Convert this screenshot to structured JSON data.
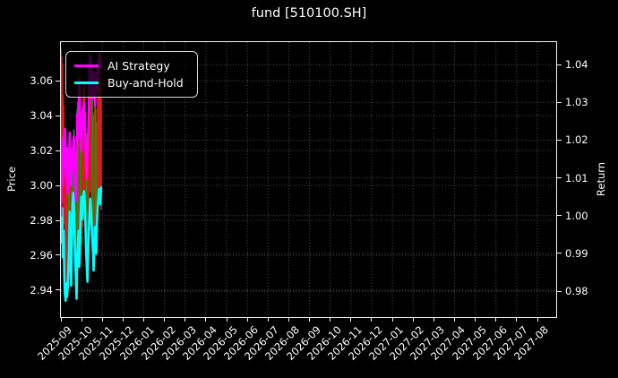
{
  "figure": {
    "bg": "#000000",
    "text_color": "#ffffff"
  },
  "title": "fund [510100.SH]",
  "chart_data": {
    "type": "candlestick+line",
    "title": "fund [510100.SH]",
    "grid": true,
    "legend_position": "upper-left",
    "left_axis": {
      "label": "Price",
      "ticks": [
        3.06,
        3.04,
        3.02,
        3.0,
        2.98,
        2.96,
        2.94
      ],
      "range": [
        2.9246,
        3.0821
      ]
    },
    "right_axis": {
      "label": "Return",
      "ticks": [
        1.04,
        1.03,
        1.02,
        1.01,
        1.0,
        0.99,
        0.98
      ],
      "range": [
        0.97315,
        1.04596
      ]
    },
    "x_axis": {
      "ticks": [
        "2025-09",
        "2025-10",
        "2025-11",
        "2025-12",
        "2026-01",
        "2026-02",
        "2026-03",
        "2026-04",
        "2026-05",
        "2026-06",
        "2026-07",
        "2026-08",
        "2026-09",
        "2026-10",
        "2026-11",
        "2026-12",
        "2027-01",
        "2027-02",
        "2027-03",
        "2027-04",
        "2027-05",
        "2027-06",
        "2027-07",
        "2027-08"
      ]
    },
    "legend": [
      {
        "label": "AI Strategy",
        "color": "#ff00ff"
      },
      {
        "label": "Buy-and-Hold",
        "color": "#00ffff"
      }
    ],
    "colors": {
      "up": "#e01b1b",
      "down": "#0b9b0b",
      "spine": "#f2f2f2",
      "grid": "#4f4f4f",
      "text": "#ffffff"
    },
    "candles_note": "day = trading-day offset from 2025-09-01; values [day, low, high, direction] on Price axis",
    "candles": [
      [
        0,
        3.0,
        3.078,
        "u"
      ],
      [
        1,
        2.996,
        3.074,
        "u"
      ],
      [
        2,
        3.004,
        3.07,
        "u"
      ],
      [
        3,
        2.99,
        3.052,
        "u"
      ],
      [
        4,
        2.984,
        3.046,
        "u"
      ],
      [
        5,
        2.978,
        3.03,
        "u"
      ],
      [
        6,
        2.96,
        3.016,
        "u"
      ],
      [
        7,
        2.948,
        3.008,
        "u"
      ],
      [
        8,
        2.938,
        3.006,
        "u"
      ],
      [
        9,
        2.936,
        2.996,
        "u"
      ],
      [
        10,
        2.94,
        2.992,
        "u"
      ],
      [
        11,
        2.946,
        2.998,
        "d"
      ],
      [
        12,
        2.952,
        3.004,
        "d"
      ],
      [
        13,
        2.96,
        3.012,
        "d"
      ],
      [
        14,
        2.95,
        3.0,
        "u"
      ],
      [
        15,
        2.944,
        2.994,
        "u"
      ],
      [
        16,
        2.955,
        3.01,
        "d"
      ],
      [
        17,
        2.965,
        3.022,
        "d"
      ],
      [
        18,
        2.97,
        3.028,
        "d"
      ],
      [
        19,
        2.972,
        3.032,
        "d"
      ],
      [
        20,
        2.966,
        3.026,
        "d"
      ],
      [
        21,
        2.955,
        3.01,
        "u"
      ],
      [
        22,
        2.946,
        3.0,
        "u"
      ],
      [
        23,
        2.94,
        2.986,
        "u"
      ],
      [
        24,
        2.95,
        3.044,
        "d"
      ],
      [
        25,
        2.958,
        3.048,
        "d"
      ],
      [
        26,
        2.962,
        3.054,
        "d"
      ],
      [
        27,
        2.956,
        3.062,
        "u"
      ],
      [
        28,
        2.964,
        3.052,
        "u"
      ],
      [
        29,
        2.97,
        3.042,
        "d"
      ],
      [
        30,
        2.966,
        3.032,
        "d"
      ],
      [
        31,
        2.972,
        3.04,
        "u"
      ],
      [
        32,
        2.976,
        3.046,
        "u"
      ],
      [
        33,
        2.98,
        3.056,
        "u"
      ],
      [
        34,
        2.984,
        3.058,
        "u"
      ],
      [
        35,
        2.986,
        3.058,
        "u"
      ],
      [
        36,
        2.978,
        3.042,
        "u"
      ],
      [
        37,
        2.97,
        3.03,
        "d"
      ],
      [
        38,
        2.962,
        3.02,
        "d"
      ],
      [
        39,
        2.956,
        3.012,
        "d"
      ],
      [
        40,
        2.974,
        3.03,
        "u"
      ],
      [
        41,
        2.988,
        3.046,
        "u"
      ],
      [
        42,
        2.996,
        3.076,
        "u"
      ],
      [
        43,
        3.0,
        3.072,
        "u"
      ],
      [
        44,
        2.996,
        3.066,
        "u"
      ],
      [
        45,
        2.99,
        3.06,
        "u"
      ],
      [
        46,
        2.98,
        3.05,
        "d"
      ],
      [
        47,
        2.97,
        3.04,
        "d"
      ],
      [
        48,
        2.96,
        3.03,
        "d"
      ],
      [
        49,
        2.97,
        3.042,
        "u"
      ],
      [
        50,
        2.98,
        3.054,
        "u"
      ],
      [
        51,
        2.974,
        3.044,
        "d"
      ],
      [
        52,
        2.968,
        3.036,
        "d"
      ],
      [
        53,
        2.972,
        3.032,
        "d"
      ],
      [
        54,
        2.98,
        3.05,
        "u"
      ],
      [
        55,
        2.99,
        3.066,
        "u"
      ],
      [
        56,
        2.994,
        3.072,
        "u"
      ],
      [
        57,
        2.994,
        3.066,
        "u"
      ],
      [
        58,
        2.992,
        3.058,
        "u"
      ],
      [
        59,
        2.986,
        3.05,
        "u"
      ]
    ],
    "series": [
      {
        "name": "AI Strategy",
        "axis": "return",
        "color": "#ff00ff",
        "values": [
          1.0,
          1.01,
          1.02,
          1.008,
          1.021,
          1.013,
          1.023,
          1.015,
          1.01,
          1.018,
          1.006,
          1.011,
          1.015,
          1.022,
          1.012,
          1.008,
          1.017,
          1.012,
          1.019,
          1.021,
          1.013,
          1.008,
          1.004,
          1.011,
          1.027,
          1.02,
          1.023,
          1.036,
          1.028,
          1.024,
          1.017,
          1.022,
          1.028,
          1.023,
          1.03,
          1.026,
          1.019,
          1.013,
          1.01,
          1.016,
          1.022,
          1.027,
          1.041,
          1.035,
          1.042,
          1.038,
          1.031,
          1.035,
          1.038,
          1.032,
          1.029,
          1.035,
          1.038,
          1.033,
          1.037,
          1.041,
          1.038,
          1.043,
          1.04,
          1.039
        ]
      },
      {
        "name": "Buy-and-Hold",
        "axis": "return",
        "color": "#00ffff",
        "values": [
          1.0,
          0.993,
          1.002,
          0.989,
          0.996,
          0.984,
          0.979,
          0.9775,
          0.982,
          0.9785,
          0.981,
          0.986,
          0.991,
          1.001,
          0.988,
          0.9815,
          0.992,
          1.003,
          1.006,
          1.004,
          0.997,
          0.988,
          0.9835,
          0.978,
          0.9885,
          0.993,
          0.996,
          0.9865,
          0.992,
          1.001,
          1.005,
          0.999,
          1.003,
          1.0055,
          1.0065,
          1.004,
          0.998,
          0.9905,
          0.9865,
          0.9825,
          0.99,
          0.996,
          1.0,
          1.0045,
          1.002,
          0.9985,
          0.994,
          0.9905,
          0.9855,
          0.991,
          0.997,
          0.9935,
          0.99,
          0.9985,
          1.002,
          1.0045,
          1.007,
          1.005,
          1.003,
          1.0075
        ]
      }
    ]
  }
}
